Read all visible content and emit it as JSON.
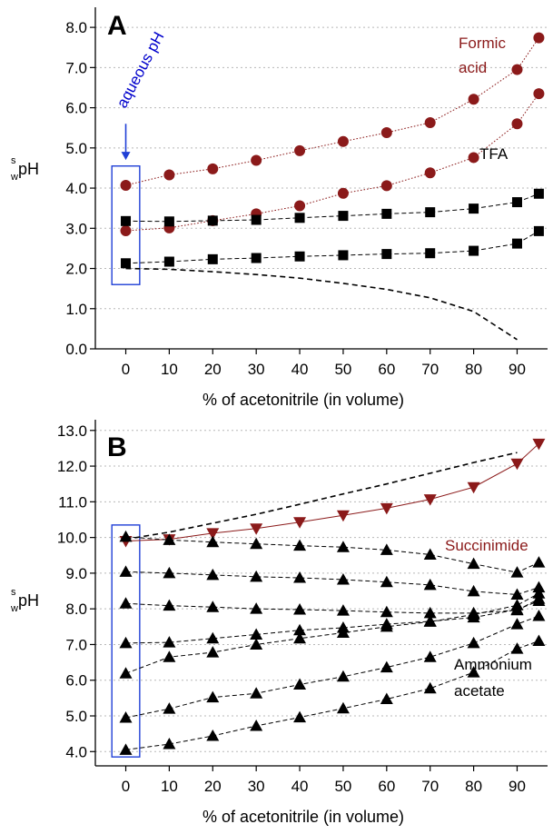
{
  "chart_data": [
    {
      "type": "scatter",
      "panel": "A",
      "xlabel": "% of acetonitrile (in volume)",
      "ylabel": {
        "super": "s",
        "sub": "w",
        "main": "pH"
      },
      "xlim": [
        -7,
        97
      ],
      "ylim": [
        0,
        8.5
      ],
      "xticks": [
        "0",
        "10",
        "20",
        "30",
        "40",
        "50",
        "60",
        "70",
        "80",
        "90"
      ],
      "yticks": [
        "0.0",
        "1.0",
        "2.0",
        "3.0",
        "4.0",
        "5.0",
        "6.0",
        "7.0",
        "8.0"
      ],
      "grid": "horizontal dotted",
      "series": [
        {
          "marker": "circle",
          "color": "#8b1a1a",
          "line": "dotted",
          "x": [
            0,
            10,
            20,
            30,
            40,
            50,
            60,
            70,
            80,
            90,
            95
          ],
          "y": [
            4.07,
            4.33,
            4.48,
            4.69,
            4.93,
            5.16,
            5.38,
            5.63,
            6.21,
            6.95,
            7.74
          ]
        },
        {
          "marker": "circle",
          "color": "#8b1a1a",
          "line": "dotted",
          "x": [
            0,
            10,
            20,
            30,
            40,
            50,
            60,
            70,
            80,
            90,
            95
          ],
          "y": [
            2.94,
            3.01,
            3.19,
            3.36,
            3.56,
            3.87,
            4.06,
            4.38,
            4.76,
            5.6,
            6.35
          ]
        },
        {
          "marker": "square",
          "color": "#000000",
          "line": "dashed",
          "x": [
            0,
            10,
            20,
            30,
            40,
            50,
            60,
            70,
            80,
            90,
            95
          ],
          "y": [
            3.18,
            3.17,
            3.19,
            3.21,
            3.26,
            3.31,
            3.36,
            3.4,
            3.49,
            3.65,
            3.86
          ]
        },
        {
          "marker": "square",
          "color": "#000000",
          "line": "dashed",
          "x": [
            0,
            10,
            20,
            30,
            40,
            50,
            60,
            70,
            80,
            90,
            95
          ],
          "y": [
            2.13,
            2.17,
            2.23,
            2.26,
            2.3,
            2.33,
            2.36,
            2.38,
            2.44,
            2.62,
            2.93
          ]
        },
        {
          "marker": "none",
          "color": "#000000",
          "line": "dashed",
          "x": [
            0,
            10,
            20,
            30,
            40,
            50,
            60,
            70,
            80,
            90
          ],
          "y": [
            2.0,
            1.98,
            1.92,
            1.85,
            1.76,
            1.63,
            1.48,
            1.27,
            0.93,
            0.23
          ]
        }
      ],
      "annotations": [
        {
          "text": "aqueous pH",
          "color": "#0000cc"
        },
        {
          "text": "Formic",
          "color": "#8b1a1a"
        },
        {
          "text": "acid",
          "color": "#8b1a1a"
        },
        {
          "text": "TFA",
          "color": "#000000"
        }
      ]
    },
    {
      "type": "scatter",
      "panel": "B",
      "xlabel": "% of acetonitrile (in volume)",
      "ylabel": {
        "super": "s",
        "sub": "w",
        "main": "pH"
      },
      "xlim": [
        -7,
        97
      ],
      "ylim": [
        3.6,
        13.3
      ],
      "xticks": [
        "0",
        "10",
        "20",
        "30",
        "40",
        "50",
        "60",
        "70",
        "80",
        "90"
      ],
      "yticks": [
        "4.0",
        "5.0",
        "6.0",
        "7.0",
        "8.0",
        "9.0",
        "10.0",
        "11.0",
        "12.0",
        "13.0"
      ],
      "grid": "horizontal dotted",
      "series": [
        {
          "marker": "triangle-down",
          "color": "#8b1a1a",
          "line": "solid",
          "x": [
            0,
            10,
            20,
            30,
            40,
            50,
            60,
            70,
            80,
            90,
            95
          ],
          "y": [
            9.9,
            9.95,
            10.12,
            10.25,
            10.43,
            10.62,
            10.82,
            11.07,
            11.41,
            12.07,
            12.63
          ]
        },
        {
          "marker": "none",
          "color": "#000000",
          "line": "dashed",
          "x": [
            0,
            10,
            20,
            30,
            40,
            50,
            60,
            70,
            80,
            90
          ],
          "y": [
            9.95,
            10.15,
            10.4,
            10.65,
            10.93,
            11.22,
            11.5,
            11.8,
            12.1,
            12.38
          ]
        },
        {
          "marker": "triangle",
          "color": "#000000",
          "line": "dashed",
          "x": [
            0,
            10,
            20,
            30,
            40,
            50,
            60,
            70,
            80,
            90,
            95
          ],
          "y": [
            10.02,
            9.93,
            9.87,
            9.82,
            9.77,
            9.73,
            9.65,
            9.52,
            9.26,
            9.02,
            9.3
          ]
        },
        {
          "marker": "triangle",
          "color": "#000000",
          "line": "dashed",
          "x": [
            0,
            10,
            20,
            30,
            40,
            50,
            60,
            70,
            80,
            90,
            95
          ],
          "y": [
            9.04,
            9.0,
            8.95,
            8.9,
            8.87,
            8.82,
            8.75,
            8.67,
            8.49,
            8.4,
            8.6
          ]
        },
        {
          "marker": "triangle",
          "color": "#000000",
          "line": "dashed",
          "x": [
            0,
            10,
            20,
            30,
            40,
            50,
            60,
            70,
            80,
            90,
            95
          ],
          "y": [
            8.15,
            8.09,
            8.05,
            8.0,
            7.98,
            7.95,
            7.91,
            7.88,
            7.88,
            7.96,
            8.28
          ]
        },
        {
          "marker": "triangle",
          "color": "#000000",
          "line": "dashed",
          "x": [
            0,
            10,
            20,
            30,
            40,
            50,
            60,
            70,
            80,
            90,
            95
          ],
          "y": [
            7.04,
            7.06,
            7.17,
            7.28,
            7.4,
            7.47,
            7.57,
            7.65,
            7.76,
            7.98,
            8.22
          ]
        },
        {
          "marker": "triangle",
          "color": "#000000",
          "line": "dashed",
          "x": [
            0,
            10,
            20,
            30,
            40,
            50,
            60,
            70,
            80,
            90,
            95
          ],
          "y": [
            6.19,
            6.65,
            6.78,
            7.0,
            7.17,
            7.33,
            7.5,
            7.64,
            7.84,
            8.1,
            8.43
          ]
        },
        {
          "marker": "triangle",
          "color": "#000000",
          "line": "dashed",
          "x": [
            0,
            10,
            20,
            30,
            40,
            50,
            60,
            70,
            80,
            90,
            95
          ],
          "y": [
            4.95,
            5.2,
            5.52,
            5.63,
            5.88,
            6.1,
            6.36,
            6.65,
            7.04,
            7.57,
            7.8
          ]
        },
        {
          "marker": "triangle",
          "color": "#000000",
          "line": "dashed",
          "x": [
            0,
            10,
            20,
            30,
            40,
            50,
            60,
            70,
            80,
            90,
            95
          ],
          "y": [
            4.05,
            4.21,
            4.44,
            4.72,
            4.96,
            5.21,
            5.47,
            5.77,
            6.22,
            6.88,
            7.1
          ]
        }
      ],
      "annotations": [
        {
          "text": "Succinimide",
          "color": "#8b1a1a"
        },
        {
          "text": "Ammonium",
          "color": "#000000"
        },
        {
          "text": "acetate",
          "color": "#000000"
        }
      ]
    }
  ]
}
